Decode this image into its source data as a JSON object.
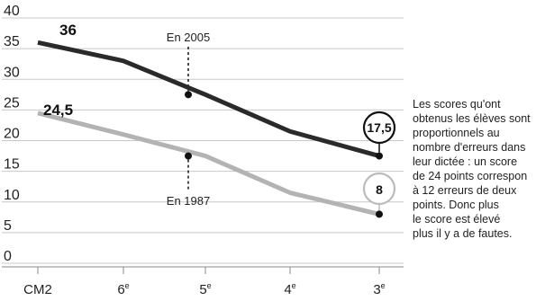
{
  "chart_data": {
    "type": "line",
    "title": "",
    "xlabel": "",
    "ylabel": "",
    "categories": [
      "CM2",
      "6",
      "5",
      "4",
      "3"
    ],
    "category_suffix": "e",
    "ylim": [
      0,
      40
    ],
    "yticks": [
      "0",
      "5",
      "10",
      "15",
      "20",
      "25",
      "30",
      "35",
      "40"
    ],
    "grid": "horizontal",
    "series": [
      {
        "year": "2005",
        "values": [
          36,
          33,
          27.5,
          21.5,
          17.5
        ],
        "color": "#2a2a2a"
      },
      {
        "year": "1987",
        "values": [
          24.5,
          21,
          17.5,
          11.5,
          8
        ],
        "color": "#b3b3b3"
      }
    ],
    "value_labels": {
      "start_dark": "36",
      "start_light": "24,5",
      "end_dark": "17,5",
      "end_light": "8"
    },
    "annotations": {
      "dark": "En 2005",
      "light": "En 1987"
    }
  },
  "note": [
    "Les scores qu'ont",
    "obtenus les élèves sont",
    "proportionnels au",
    "nombre d'erreurs dans",
    "leur dictée : un score",
    "de 24 points correspon",
    "à 12 erreurs de deux",
    "points. Donc plus",
    "le score est élevé",
    "plus il y a de fautes."
  ]
}
